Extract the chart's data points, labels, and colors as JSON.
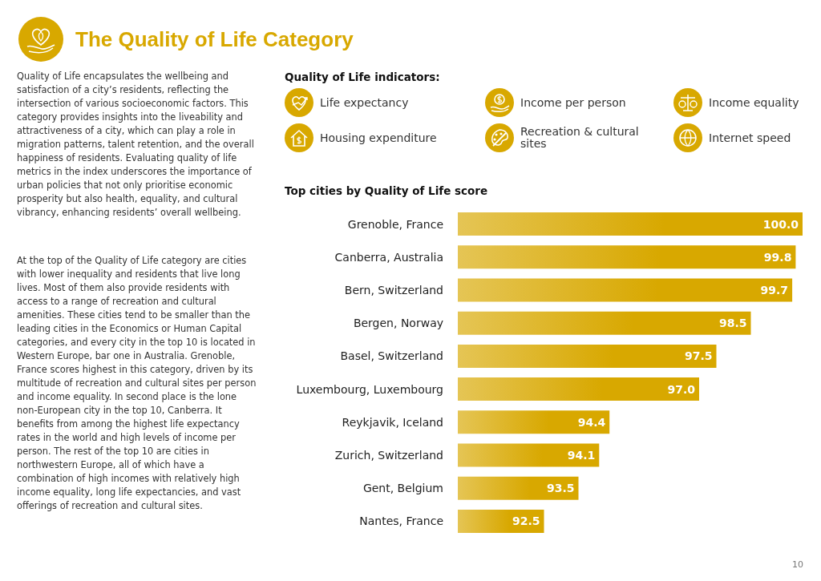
{
  "chart_data": {
    "type": "bar",
    "orientation": "horizontal",
    "title": "The Quality of Life Category",
    "subtitle": "Top cities by Quality of Life score",
    "categories": [
      "Grenoble, France",
      "Canberra, Australia",
      "Bern, Switzerland",
      "Bergen, Norway",
      "Basel, Switzerland",
      "Luxembourg, Luxembourg",
      "Reykjavik, Iceland",
      "Zurich, Switzerland",
      "Gent, Belgium",
      "Nantes, France"
    ],
    "values": [
      100.0,
      99.8,
      99.7,
      98.5,
      97.5,
      97.0,
      94.4,
      94.1,
      93.5,
      92.5
    ],
    "value_labels": [
      "100.0",
      "99.8",
      "99.7",
      "98.5",
      "97.5",
      "97.0",
      "94.4",
      "94.1",
      "93.5",
      "92.5"
    ],
    "color": "#d8a800",
    "xlim": [
      90,
      100
    ],
    "tick_labels": "y",
    "annotations": [
      "Quality of Life encapsulates the wellbeing and satisfaction of a city’s residents, reflecting the intersection of various socioeconomic factors. This category provides insights into the liveability and attractiveness of a city, which can play a role in migration patterns, talent retention, and the overall happiness of residents. Evaluating quality of life metrics in the index underscores the importance of urban policies that not only prioritise economic prosperity but also health, equality, and cultural vibrancy, enhancing residents’ overall wellbeing.",
      "At the top of the Quality of Life category are cities with lower inequality and residents that live long lives. Most of them also provide residents with access to a range of recreation and cultural amenities. These cities tend to be smaller than the leading cities in the Economics or Human Capital categories, and every city in the top 10 is located in Western Europe, bar one in Australia. Grenoble, France scores highest in this category, driven by its multitude of recreation and cultural sites per person and income equality. In second place is the lone non-European city in the top 10, Canberra. It benefits from among the highest life expectancy rates in the world and high levels of income per person. The rest of the top 10 are cities in northwestern Europe, all of which have a combination of high incomes with relatively high income equality, long life expectancies, and vast offerings of recreation and cultural sites.",
      "Quality of Life indicators:",
      "Life expectancy",
      "Income per person",
      "Income equality",
      "Housing expenditure",
      "Recreation & cultural sites",
      "Internet speed",
      "10"
    ]
  }
}
